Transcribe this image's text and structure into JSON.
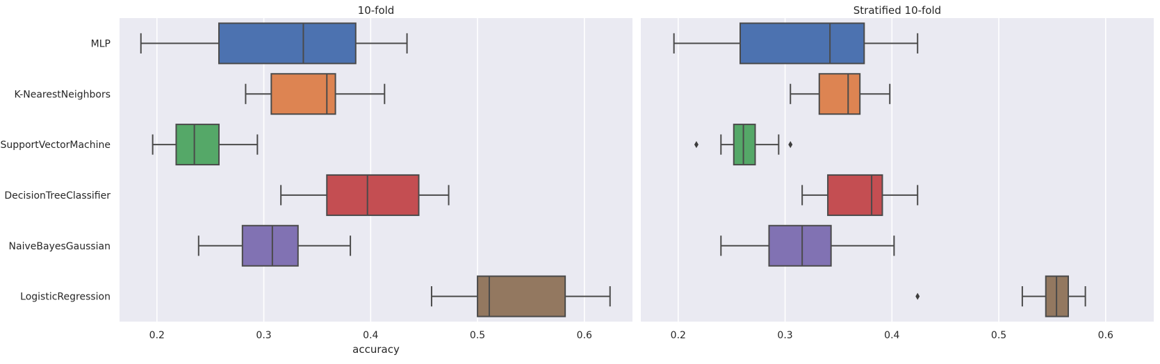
{
  "chart_data": [
    {
      "type": "box",
      "title": "10-fold",
      "xlabel": "accuracy",
      "ylabel": "",
      "xlim": [
        0.165,
        0.645
      ],
      "xticks": [
        0.2,
        0.3,
        0.4,
        0.5,
        0.6
      ],
      "xtick_labels": [
        "0.2",
        "0.3",
        "0.4",
        "0.5",
        "0.6"
      ],
      "grid": true,
      "categories": [
        "MLP",
        "K-NearestNeighbors",
        "SupportVectorMachine",
        "DecisionTreeClassifier",
        "NaiveBayesGaussian",
        "LogisticRegression"
      ],
      "series": [
        {
          "name": "MLP",
          "color": "#4c72b0",
          "whisker_low": 0.185,
          "q1": 0.258,
          "median": 0.337,
          "q3": 0.386,
          "whisker_high": 0.434,
          "outliers": []
        },
        {
          "name": "K-NearestNeighbors",
          "color": "#dd8452",
          "whisker_low": 0.283,
          "q1": 0.307,
          "median": 0.359,
          "q3": 0.367,
          "whisker_high": 0.413,
          "outliers": []
        },
        {
          "name": "SupportVectorMachine",
          "color": "#55a868",
          "whisker_low": 0.196,
          "q1": 0.218,
          "median": 0.235,
          "q3": 0.258,
          "whisker_high": 0.294,
          "outliers": []
        },
        {
          "name": "DecisionTreeClassifier",
          "color": "#c44e52",
          "whisker_low": 0.316,
          "q1": 0.359,
          "median": 0.397,
          "q3": 0.445,
          "whisker_high": 0.473,
          "outliers": []
        },
        {
          "name": "NaiveBayesGaussian",
          "color": "#8172b3",
          "whisker_low": 0.239,
          "q1": 0.28,
          "median": 0.308,
          "q3": 0.332,
          "whisker_high": 0.381,
          "outliers": []
        },
        {
          "name": "LogisticRegression",
          "color": "#937860",
          "whisker_low": 0.457,
          "q1": 0.5,
          "median": 0.511,
          "q3": 0.582,
          "whisker_high": 0.624,
          "outliers": []
        }
      ]
    },
    {
      "type": "box",
      "title": "Stratified 10-fold",
      "xlabel": "",
      "ylabel": "",
      "xlim": [
        0.165,
        0.645
      ],
      "xticks": [
        0.2,
        0.3,
        0.4,
        0.5,
        0.6
      ],
      "xtick_labels": [
        "0.2",
        "0.3",
        "0.4",
        "0.5",
        "0.6"
      ],
      "grid": true,
      "categories": [
        "MLP",
        "K-NearestNeighbors",
        "SupportVectorMachine",
        "DecisionTreeClassifier",
        "NaiveBayesGaussian",
        "LogisticRegression"
      ],
      "series": [
        {
          "name": "MLP",
          "color": "#4c72b0",
          "whisker_low": 0.196,
          "q1": 0.258,
          "median": 0.342,
          "q3": 0.374,
          "whisker_high": 0.424,
          "outliers": []
        },
        {
          "name": "K-NearestNeighbors",
          "color": "#dd8452",
          "whisker_low": 0.305,
          "q1": 0.332,
          "median": 0.359,
          "q3": 0.37,
          "whisker_high": 0.398,
          "outliers": []
        },
        {
          "name": "SupportVectorMachine",
          "color": "#55a868",
          "whisker_low": 0.24,
          "q1": 0.252,
          "median": 0.261,
          "q3": 0.272,
          "whisker_high": 0.294,
          "outliers": [
            0.217,
            0.305
          ]
        },
        {
          "name": "DecisionTreeClassifier",
          "color": "#c44e52",
          "whisker_low": 0.316,
          "q1": 0.34,
          "median": 0.381,
          "q3": 0.391,
          "whisker_high": 0.424,
          "outliers": []
        },
        {
          "name": "NaiveBayesGaussian",
          "color": "#8172b3",
          "whisker_low": 0.24,
          "q1": 0.285,
          "median": 0.316,
          "q3": 0.343,
          "whisker_high": 0.402,
          "outliers": []
        },
        {
          "name": "LogisticRegression",
          "color": "#937860",
          "whisker_low": 0.522,
          "q1": 0.544,
          "median": 0.554,
          "q3": 0.565,
          "whisker_high": 0.581,
          "outliers": [
            0.424
          ]
        }
      ]
    }
  ]
}
